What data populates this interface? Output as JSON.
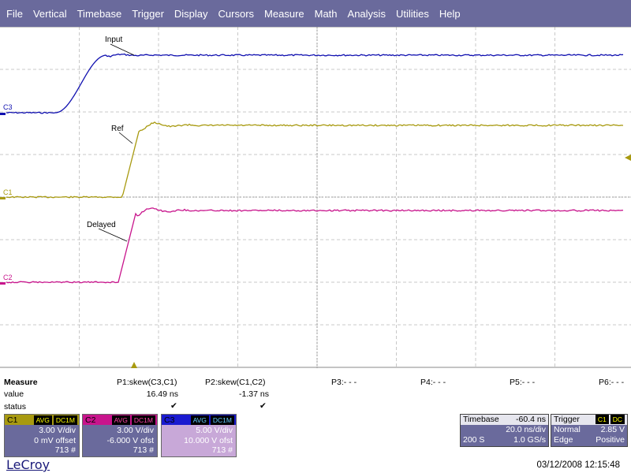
{
  "menu": [
    "File",
    "Vertical",
    "Timebase",
    "Trigger",
    "Display",
    "Cursors",
    "Measure",
    "Math",
    "Analysis",
    "Utilities",
    "Help"
  ],
  "traces": {
    "c3": {
      "marker": "C3",
      "label": "Input",
      "color": "#1010b0"
    },
    "c1": {
      "marker": "C1",
      "label": "Ref",
      "color": "#a89a10"
    },
    "c2": {
      "marker": "C2",
      "label": "Delayed",
      "color": "#c8148c"
    }
  },
  "measure": {
    "title": "Measure",
    "row_value": "value",
    "row_status": "status",
    "params": [
      {
        "name": "P1:skew(C3,C1)",
        "value": "16.49 ns",
        "status": "✔"
      },
      {
        "name": "P2:skew(C1,C2)",
        "value": "-1.37 ns",
        "status": "✔"
      },
      {
        "name": "P3:- - -",
        "value": "",
        "status": ""
      },
      {
        "name": "P4:- - -",
        "value": "",
        "status": ""
      },
      {
        "name": "P5:- - -",
        "value": "",
        "status": ""
      },
      {
        "name": "P6:- - -",
        "value": "",
        "status": ""
      }
    ]
  },
  "channels": [
    {
      "name": "C1",
      "coupling": "AVG",
      "impedance": "DC1M",
      "vdiv": "3.00 V/div",
      "offset": "0 mV offset",
      "count": "713 #",
      "color": "#a89a10",
      "body": "#6a6a9c"
    },
    {
      "name": "C2",
      "coupling": "AVG",
      "impedance": "DC1M",
      "vdiv": "3.00 V/div",
      "offset": "-6.000 V ofst",
      "count": "713 #",
      "color": "#c8148c",
      "body": "#6a6a9c"
    },
    {
      "name": "C3",
      "coupling": "AVG",
      "impedance": "DC1M",
      "vdiv": "5.00 V/div",
      "offset": "10.000 V ofst",
      "count": "713 #",
      "color": "#1a1ad0",
      "body": "#c8a8d8"
    }
  ],
  "timebase": {
    "label": "Timebase",
    "delay": "-60.4 ns",
    "tdiv": "20.0 ns/div",
    "samples": "200 S",
    "rate": "1.0 GS/s"
  },
  "trigger": {
    "label": "Trigger",
    "source": "C1",
    "coupling": "DC",
    "mode": "Normal",
    "level": "2.85 V",
    "type": "Edge",
    "slope": "Positive"
  },
  "brand": "LeCroy",
  "datetime": "03/12/2008 12:15:48"
}
